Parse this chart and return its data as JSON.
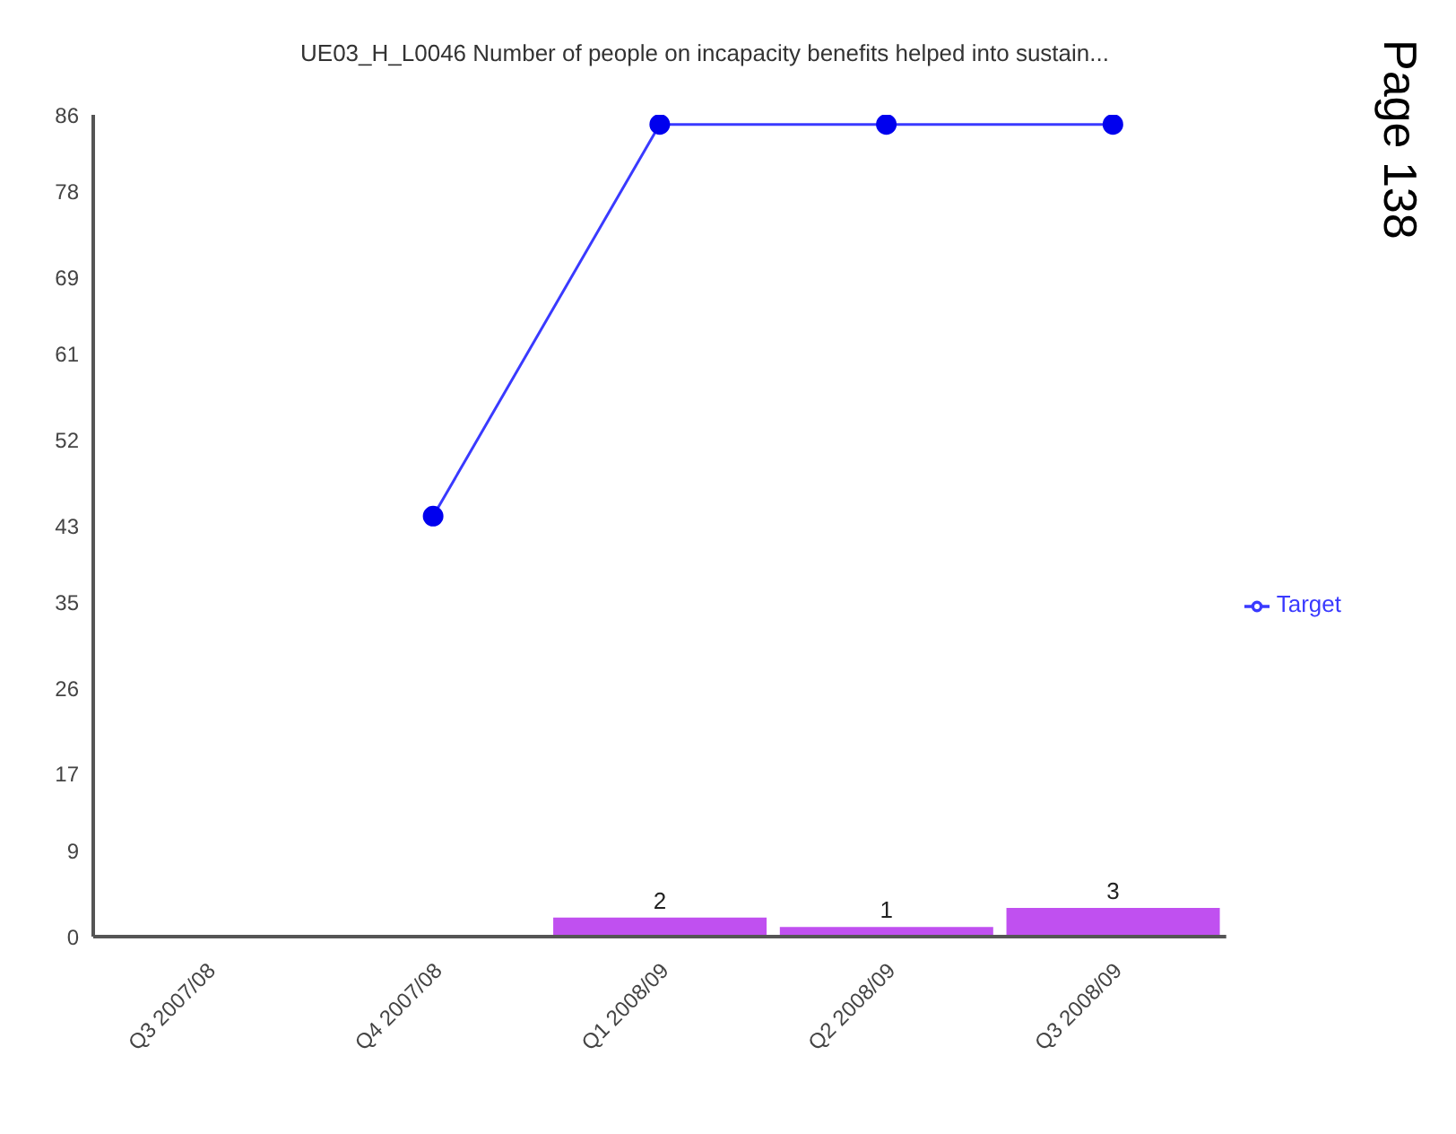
{
  "chart_data": {
    "type": "bar",
    "title": "UE03_H_L0046 Number of people on incapacity benefits helped into sustain...",
    "categories": [
      "Q3 2007/08",
      "Q4 2007/08",
      "Q1 2008/09",
      "Q2 2008/09",
      "Q3 2008/09"
    ],
    "series": [
      {
        "color": "#c050f0",
        "values": [
          null,
          null,
          2,
          1,
          3
        ],
        "value_labels": [
          null,
          null,
          "2",
          "1",
          "3"
        ]
      },
      {
        "type": "line",
        "name": "Target",
        "color": "#3a3aff",
        "values": [
          null,
          44,
          85,
          85,
          85
        ]
      }
    ],
    "ylim": [
      0,
      86
    ],
    "yticks": [
      0,
      9,
      17,
      26,
      35,
      43,
      52,
      61,
      69,
      78,
      86
    ],
    "legend": "right",
    "marker": "circle",
    "line_style": "solid",
    "annotations": [
      "Page 138"
    ]
  }
}
